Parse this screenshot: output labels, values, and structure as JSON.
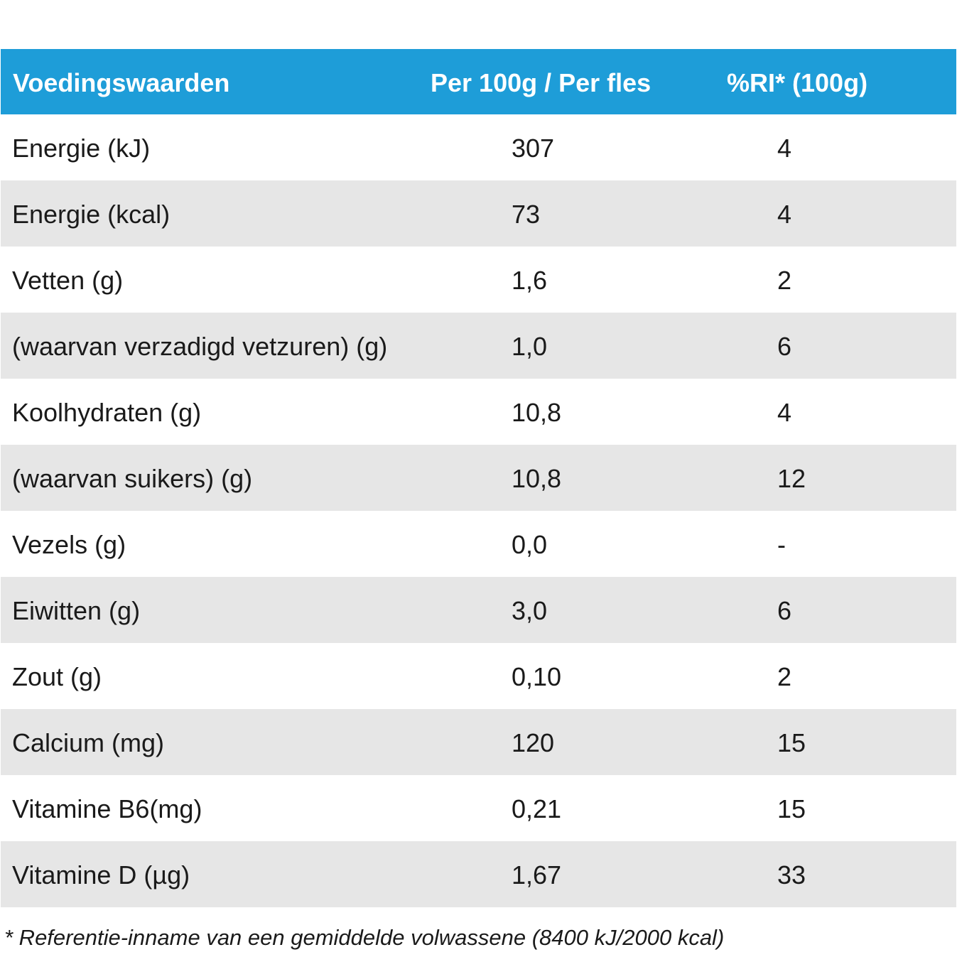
{
  "table": {
    "headers": [
      "Voedingswaarden",
      "Per 100g / Per fles",
      "%RI* (100g)"
    ],
    "rows": [
      [
        "Energie (kJ)",
        "307",
        "4"
      ],
      [
        "Energie (kcal)",
        "73",
        "4"
      ],
      [
        "Vetten (g)",
        "1,6",
        "2"
      ],
      [
        "(waarvan verzadigd vetzuren) (g)",
        "1,0",
        "6"
      ],
      [
        "Koolhydraten (g)",
        "10,8",
        "4"
      ],
      [
        "(waarvan suikers) (g)",
        "10,8",
        "12"
      ],
      [
        "Vezels (g)",
        "0,0",
        "-"
      ],
      [
        "Eiwitten (g)",
        "3,0",
        "6"
      ],
      [
        "Zout (g)",
        "0,10",
        "2"
      ],
      [
        "Calcium (mg)",
        "120",
        "15"
      ],
      [
        "Vitamine B6(mg)",
        "0,21",
        "15"
      ],
      [
        "Vitamine D (µg)",
        "1,67",
        "33"
      ]
    ]
  },
  "footnote": "* Referentie-inname van een gemiddelde volwassene (8400 kJ/2000 kcal)",
  "colors": {
    "header_bg": "#1e9dd8",
    "stripe_bg": "#e6e6e6"
  }
}
